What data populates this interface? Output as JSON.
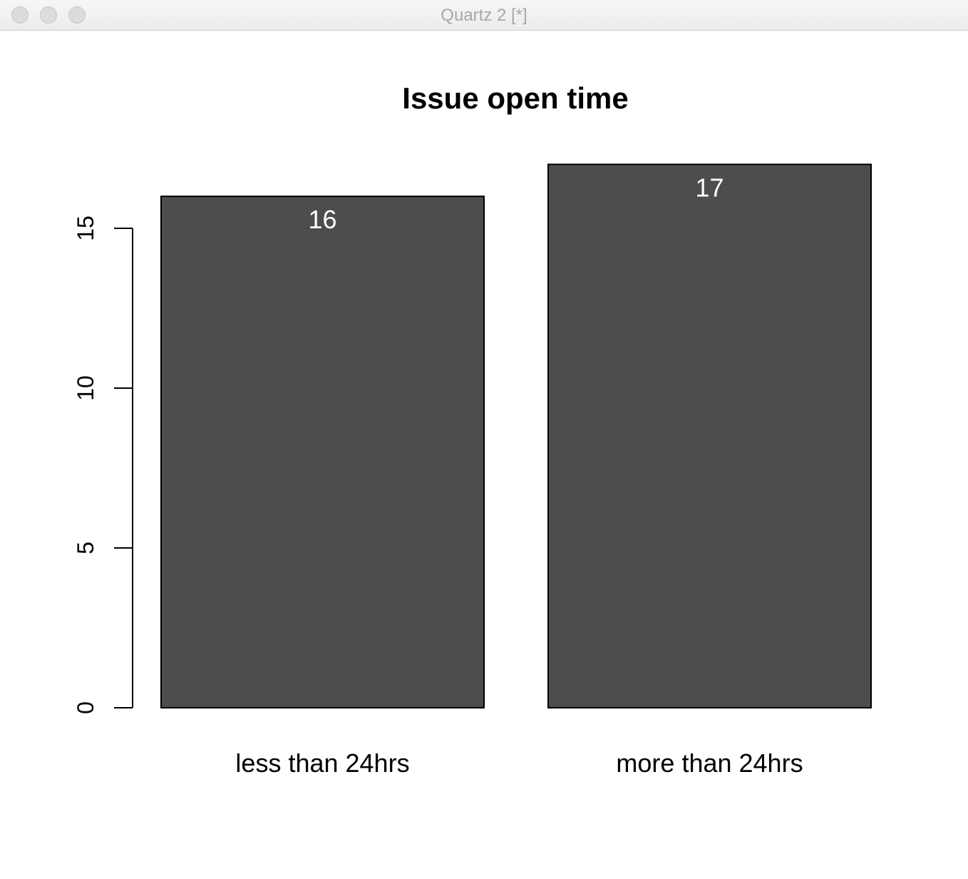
{
  "window": {
    "title": "Quartz 2 [*]"
  },
  "colors": {
    "bar_fill": "#4d4d4d",
    "bar_stroke": "#000000",
    "value_label": "#ffffff",
    "axis": "#000000",
    "background": "#ffffff"
  },
  "chart_data": {
    "type": "bar",
    "title": "Issue open time",
    "xlabel": "",
    "ylabel": "",
    "categories": [
      "less than 24hrs",
      "more than 24hrs"
    ],
    "values": [
      16,
      17
    ],
    "value_labels": [
      "16",
      "17"
    ],
    "ylim": [
      0,
      15
    ],
    "yticks": [
      0,
      5,
      10,
      15
    ],
    "ytick_labels": [
      "0",
      "5",
      "10",
      "15"
    ],
    "grid": false,
    "legend": "none"
  }
}
